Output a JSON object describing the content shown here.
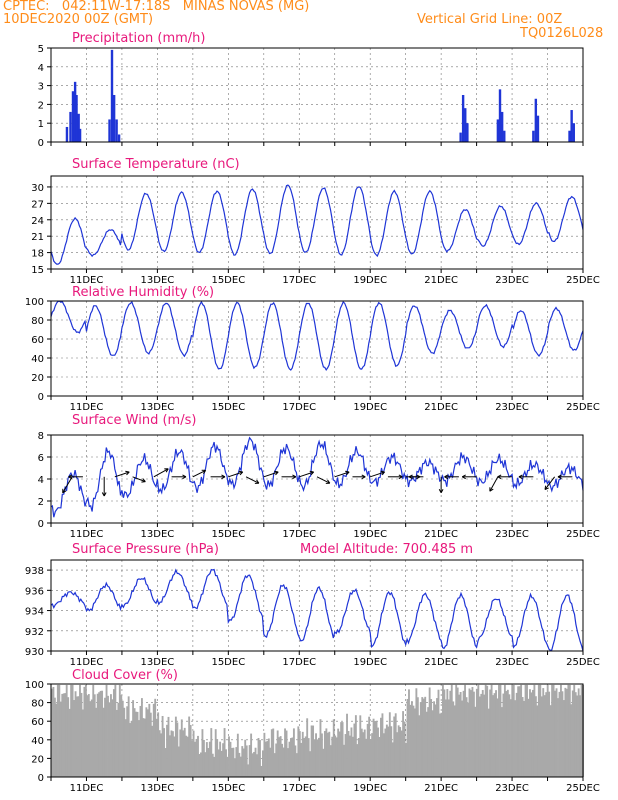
{
  "header": {
    "line1_left": "CPTEC:   042:11W-17:18S   MINAS NOVAS (MG)",
    "line2_left": "10DEC2020 00Z (GMT)",
    "line1_right": "Vertical Grid Line: 00Z",
    "line2_right": "TQ0126L028"
  },
  "colors": {
    "header": "#ff8c1a",
    "title": "#e8197c",
    "series": "#1f35d6",
    "cloud": "#a9a9a9"
  },
  "x_axis": {
    "start": "10DEC",
    "end": "25DEC",
    "tick_labels": [
      "11DEC",
      "13DEC",
      "15DEC",
      "17DEC",
      "19DEC",
      "21DEC",
      "23DEC",
      "25DEC"
    ],
    "vertical_grid": "00Z each day"
  },
  "chart_data": [
    {
      "id": "precip",
      "type": "bar",
      "title": "Precipitation (mm/h)",
      "ylim": [
        0,
        5
      ],
      "yticks": [
        0,
        1,
        2,
        3,
        4,
        5
      ],
      "events": [
        {
          "t": 0.45,
          "v": 0.8
        },
        {
          "t": 0.55,
          "v": 1.6
        },
        {
          "t": 0.62,
          "v": 2.7
        },
        {
          "t": 0.68,
          "v": 3.2
        },
        {
          "t": 0.72,
          "v": 2.5
        },
        {
          "t": 0.78,
          "v": 1.5
        },
        {
          "t": 0.82,
          "v": 0.7
        },
        {
          "t": 1.65,
          "v": 1.2
        },
        {
          "t": 1.72,
          "v": 4.9
        },
        {
          "t": 1.78,
          "v": 2.5
        },
        {
          "t": 1.85,
          "v": 1.2
        },
        {
          "t": 1.92,
          "v": 0.4
        },
        {
          "t": 11.55,
          "v": 0.5
        },
        {
          "t": 11.62,
          "v": 2.5
        },
        {
          "t": 11.68,
          "v": 1.8
        },
        {
          "t": 11.74,
          "v": 1.0
        },
        {
          "t": 12.6,
          "v": 1.2
        },
        {
          "t": 12.66,
          "v": 2.8
        },
        {
          "t": 12.72,
          "v": 1.6
        },
        {
          "t": 12.78,
          "v": 0.6
        },
        {
          "t": 13.6,
          "v": 0.6
        },
        {
          "t": 13.67,
          "v": 2.3
        },
        {
          "t": 13.73,
          "v": 1.4
        },
        {
          "t": 14.62,
          "v": 0.6
        },
        {
          "t": 14.68,
          "v": 1.7
        },
        {
          "t": 14.74,
          "v": 1.0
        }
      ]
    },
    {
      "id": "temp",
      "type": "line",
      "title": "Surface Temperature (nC)",
      "ylim": [
        15,
        32
      ],
      "yticks": [
        15,
        18,
        21,
        24,
        27,
        30
      ],
      "daily_min": [
        15.8,
        17.5,
        18.5,
        18.2,
        18.0,
        17.6,
        17.8,
        18.0,
        17.6,
        17.5,
        17.7,
        18.3,
        19.2,
        19.5,
        20.0
      ],
      "daily_max": [
        24.2,
        22.2,
        28.8,
        29.0,
        29.2,
        29.6,
        30.3,
        29.8,
        30.1,
        29.2,
        29.2,
        25.9,
        26.5,
        27.0,
        28.2
      ]
    },
    {
      "id": "rh",
      "type": "line",
      "title": "Relative Humidity (%)",
      "ylim": [
        0,
        100
      ],
      "yticks": [
        0,
        20,
        40,
        60,
        80,
        100
      ],
      "daily_min": [
        67,
        42,
        45,
        43,
        28,
        30,
        28,
        28,
        28,
        32,
        45,
        50,
        52,
        43,
        48
      ],
      "daily_max": [
        100,
        95,
        98,
        98,
        98,
        98,
        98,
        98,
        98,
        98,
        95,
        90,
        95,
        90,
        92
      ]
    },
    {
      "id": "wind",
      "type": "line",
      "title": "Surface Wind (m/s)",
      "ylim": [
        0,
        8
      ],
      "yticks": [
        0,
        2,
        4,
        6,
        8
      ],
      "daily_min": [
        1.0,
        1.5,
        2.5,
        3.0,
        3.2,
        3.5,
        3.4,
        3.3,
        3.5,
        3.7,
        3.8,
        3.8,
        3.7,
        3.5,
        3.3
      ],
      "daily_max": [
        4.5,
        6.5,
        5.8,
        6.5,
        7.0,
        7.5,
        6.8,
        7.2,
        6.5,
        6.0,
        5.5,
        6.0,
        5.8,
        5.3,
        5.0
      ],
      "vectors": [
        {
          "t": 0.6,
          "u": -0.6,
          "v": -1.0
        },
        {
          "t": 0.9,
          "u": -0.9,
          "v": 0.0
        },
        {
          "t": 1.5,
          "u": 0.0,
          "v": -1.2
        },
        {
          "t": 1.8,
          "u": 0.9,
          "v": 0.3
        },
        {
          "t": 2.3,
          "u": 0.8,
          "v": -0.3
        },
        {
          "t": 2.9,
          "u": 0.9,
          "v": 0.5
        },
        {
          "t": 3.4,
          "u": 0.9,
          "v": 0.0
        },
        {
          "t": 4.0,
          "u": 0.8,
          "v": 0.4
        },
        {
          "t": 4.5,
          "u": 0.9,
          "v": 0.0
        },
        {
          "t": 5.0,
          "u": 0.9,
          "v": 0.3
        },
        {
          "t": 5.5,
          "u": 0.8,
          "v": -0.4
        },
        {
          "t": 6.0,
          "u": 0.9,
          "v": 0.3
        },
        {
          "t": 6.5,
          "u": 0.9,
          "v": 0.0
        },
        {
          "t": 7.0,
          "u": 0.9,
          "v": 0.3
        },
        {
          "t": 7.5,
          "u": 0.8,
          "v": -0.4
        },
        {
          "t": 8.0,
          "u": 0.9,
          "v": 0.3
        },
        {
          "t": 8.5,
          "u": 0.8,
          "v": 0.0
        },
        {
          "t": 9.0,
          "u": 0.9,
          "v": 0.3
        },
        {
          "t": 9.5,
          "u": 0.9,
          "v": 0.0
        },
        {
          "t": 10.0,
          "u": 0.9,
          "v": 0.0
        },
        {
          "t": 10.5,
          "u": -0.9,
          "v": 0.0
        },
        {
          "t": 11.0,
          "u": 0.0,
          "v": -1.0
        },
        {
          "t": 11.5,
          "u": -0.9,
          "v": 0.0
        },
        {
          "t": 12.0,
          "u": -0.9,
          "v": 0.0
        },
        {
          "t": 12.6,
          "u": -0.5,
          "v": -0.9
        },
        {
          "t": 13.0,
          "u": -0.9,
          "v": 0.0
        },
        {
          "t": 13.6,
          "u": -0.9,
          "v": 0.0
        },
        {
          "t": 14.2,
          "u": -0.6,
          "v": -0.8
        },
        {
          "t": 14.7,
          "u": -0.9,
          "v": 0.0
        }
      ]
    },
    {
      "id": "pres",
      "type": "line",
      "title": "Surface Pressure (hPa)",
      "subtitle": "Model Altitude: 700.485 m",
      "ylim": [
        930,
        939
      ],
      "yticks": [
        930,
        932,
        934,
        936,
        938
      ],
      "daily_min": [
        934.5,
        934.0,
        934.5,
        934.8,
        934.2,
        933.0,
        931.5,
        931.0,
        931.8,
        930.5,
        931.0,
        930.2,
        931.2,
        930.5,
        930.0
      ],
      "daily_max": [
        935.8,
        936.5,
        937.2,
        937.8,
        938.0,
        937.5,
        936.5,
        936.2,
        936.0,
        935.8,
        935.6,
        935.5,
        935.2,
        935.4,
        935.5
      ]
    },
    {
      "id": "cloud",
      "type": "area",
      "title": "Cloud Cover (%)",
      "ylim": [
        0,
        100
      ],
      "yticks": [
        0,
        20,
        40,
        60,
        80,
        100
      ],
      "daily_level": [
        95,
        92,
        75,
        55,
        40,
        35,
        45,
        50,
        55,
        60,
        85,
        95,
        97,
        98,
        98
      ]
    }
  ]
}
